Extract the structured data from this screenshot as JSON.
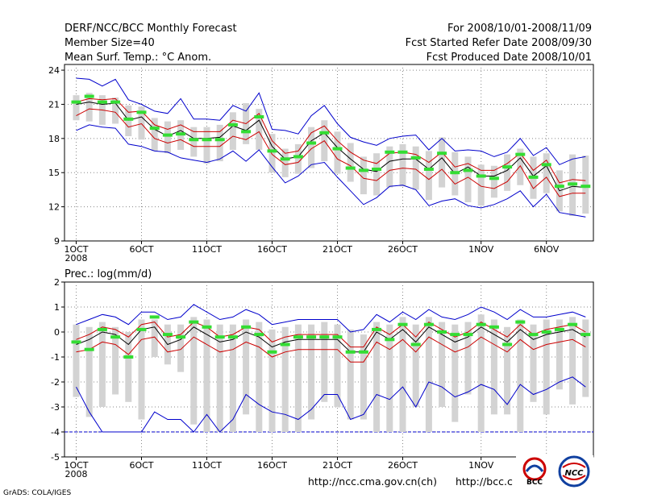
{
  "header": {
    "title_left": "DERF/NCC/BCC Monthly Forecast",
    "member_size": "Member Size=40",
    "variable": "Mean Surf. Temp.: °C Anom.",
    "period": "For 2008/10/01-2008/11/09",
    "started_date": "Fcst Started Refer Date 2008/09/30",
    "produced_date": "Fcst Produced Date 2008/10/01"
  },
  "footer": {
    "credit": "GrADS: COLA/IGES",
    "url1": "http://ncc.cma.gov.cn(ch)",
    "url2": "http://bcc.c",
    "logo1_text": "BCC",
    "logo2_text": "NCC"
  },
  "colors": {
    "box": "#d3d3d3",
    "ensemble_mean": "#000000",
    "band_inner": "#cc0000",
    "band_outer": "#0000cc",
    "marker": "#33dd33",
    "zero_line": "#0000cc",
    "grid": "#888888"
  },
  "chart_data": [
    {
      "type": "box",
      "title": "Mean Surf. Temp.: °C Anom.",
      "x_ticks": [
        "1OCT",
        "6OCT",
        "11OCT",
        "16OCT",
        "21OCT",
        "26OCT",
        "1NOV",
        "6NOV"
      ],
      "x_tick_days": [
        1,
        6,
        11,
        16,
        21,
        26,
        32,
        37
      ],
      "x_sublabel": "2008",
      "ylim": [
        9,
        24.5
      ],
      "y_ticks": [
        9,
        12,
        15,
        18,
        21,
        24
      ],
      "days": [
        1,
        2,
        3,
        4,
        5,
        6,
        7,
        8,
        9,
        10,
        11,
        12,
        13,
        14,
        15,
        16,
        17,
        18,
        19,
        20,
        21,
        22,
        23,
        24,
        25,
        26,
        27,
        28,
        29,
        30,
        31,
        32,
        33,
        34,
        35,
        36,
        37,
        38,
        39,
        40
      ],
      "mean": [
        21.0,
        21.2,
        21.0,
        21.1,
        19.6,
        19.9,
        18.8,
        18.2,
        18.7,
        18.0,
        18.0,
        18.1,
        19.1,
        18.7,
        19.6,
        17.3,
        16.2,
        16.4,
        17.8,
        18.5,
        17.2,
        16.2,
        15.3,
        15.1,
        16.0,
        16.2,
        16.2,
        15.3,
        16.3,
        14.9,
        15.5,
        14.7,
        14.7,
        15.2,
        16.3,
        14.7,
        15.6,
        13.4,
        13.8,
        13.7
      ],
      "inner_upper": [
        21.2,
        21.5,
        21.4,
        21.5,
        20.3,
        20.4,
        19.2,
        18.8,
        19.2,
        18.6,
        18.6,
        18.6,
        19.6,
        19.3,
        20.2,
        17.8,
        16.7,
        16.9,
        18.5,
        19.1,
        17.8,
        16.8,
        16.1,
        15.8,
        16.7,
        16.8,
        16.6,
        15.9,
        16.8,
        15.5,
        15.8,
        15.2,
        15.2,
        15.8,
        16.7,
        15.2,
        16.1,
        14.1,
        14.4,
        14.3
      ],
      "inner_lower": [
        20.0,
        20.6,
        20.5,
        20.3,
        19.0,
        19.3,
        18.0,
        17.6,
        17.9,
        17.3,
        17.3,
        17.3,
        18.2,
        17.9,
        18.6,
        16.6,
        15.7,
        15.9,
        17.1,
        17.8,
        16.2,
        15.6,
        14.5,
        14.3,
        15.2,
        15.4,
        15.3,
        14.4,
        15.3,
        14.0,
        14.6,
        13.8,
        13.6,
        14.2,
        15.6,
        13.6,
        14.6,
        12.9,
        13.2,
        13.2
      ],
      "outer_upper": [
        23.3,
        23.2,
        22.6,
        23.2,
        21.4,
        21.0,
        20.4,
        20.2,
        21.5,
        19.7,
        19.7,
        19.6,
        20.9,
        20.4,
        22.0,
        18.8,
        18.7,
        18.4,
        20.0,
        20.9,
        19.3,
        18.1,
        17.7,
        17.4,
        18.0,
        18.2,
        18.3,
        17.0,
        18.0,
        16.9,
        17.0,
        16.9,
        16.4,
        16.8,
        18.0,
        16.5,
        17.2,
        15.7,
        16.2,
        16.4
      ],
      "outer_lower": [
        18.7,
        19.2,
        19.0,
        18.9,
        17.5,
        17.3,
        16.9,
        16.8,
        16.3,
        16.1,
        15.9,
        16.2,
        16.9,
        16.0,
        17.0,
        15.5,
        14.1,
        14.7,
        15.7,
        15.9,
        14.6,
        13.4,
        12.2,
        12.8,
        13.8,
        13.9,
        13.5,
        12.1,
        12.5,
        12.7,
        12.1,
        11.9,
        12.2,
        12.7,
        13.4,
        12.0,
        13.1,
        11.5,
        11.3,
        11.1
      ],
      "box_top": [
        21.8,
        22.0,
        21.8,
        21.6,
        20.9,
        20.8,
        19.8,
        19.5,
        19.6,
        19.0,
        19.0,
        19.2,
        20.3,
        21.1,
        20.6,
        18.4,
        17.1,
        17.5,
        19.0,
        19.6,
        18.6,
        17.6,
        16.4,
        16.7,
        17.3,
        17.5,
        17.3,
        16.9,
        18.1,
        16.8,
        16.4,
        15.7,
        15.6,
        16.6,
        17.1,
        16.4,
        16.7,
        15.2,
        16.6,
        16.5
      ],
      "box_bottom": [
        19.6,
        19.5,
        19.2,
        19.3,
        18.2,
        17.9,
        16.9,
        16.7,
        17.0,
        16.4,
        15.8,
        16.0,
        17.0,
        17.5,
        17.0,
        15.0,
        14.6,
        14.9,
        15.4,
        16.0,
        14.9,
        14.2,
        13.1,
        13.0,
        13.7,
        13.8,
        13.5,
        12.6,
        13.7,
        13.0,
        12.4,
        12.1,
        12.8,
        13.4,
        13.9,
        12.7,
        13.2,
        11.6,
        11.2,
        11.4
      ],
      "marker": [
        21.2,
        21.7,
        21.2,
        21.2,
        19.7,
        20.3,
        18.9,
        18.3,
        18.4,
        17.9,
        17.9,
        17.9,
        19.2,
        18.6,
        19.9,
        16.9,
        16.2,
        16.4,
        17.6,
        18.5,
        17.1,
        15.4,
        15.2,
        15.3,
        16.8,
        16.8,
        16.3,
        15.3,
        16.7,
        15.0,
        15.2,
        14.7,
        14.5,
        15.5,
        16.6,
        14.6,
        15.7,
        13.8,
        14.0,
        13.8
      ]
    },
    {
      "type": "box",
      "title": "Prec.: log(mm/d)",
      "x_ticks": [
        "1OCT",
        "6OCT",
        "11OCT",
        "16OCT",
        "21OCT",
        "26OCT",
        "1NOV",
        "6NOV"
      ],
      "x_tick_days": [
        1,
        6,
        11,
        16,
        21,
        26,
        32,
        37
      ],
      "x_sublabel": "2008",
      "ylim": [
        -5,
        2
      ],
      "y_ticks": [
        -5,
        -4,
        -3,
        -2,
        -1,
        0,
        1,
        2
      ],
      "baseline": -4,
      "days": [
        1,
        2,
        3,
        4,
        5,
        6,
        7,
        8,
        9,
        10,
        11,
        12,
        13,
        14,
        15,
        16,
        17,
        18,
        19,
        20,
        21,
        22,
        23,
        24,
        25,
        26,
        27,
        28,
        29,
        30,
        31,
        32,
        33,
        34,
        35,
        36,
        37,
        38,
        39,
        40
      ],
      "mean": [
        -0.5,
        -0.3,
        0.0,
        -0.1,
        -0.5,
        0.1,
        0.2,
        -0.5,
        -0.3,
        0.2,
        -0.1,
        -0.4,
        -0.3,
        0.0,
        -0.2,
        -0.6,
        -0.4,
        -0.3,
        -0.3,
        -0.3,
        -0.3,
        -0.8,
        -0.8,
        0.0,
        -0.3,
        0.1,
        -0.4,
        0.2,
        -0.1,
        -0.4,
        -0.2,
        0.2,
        -0.1,
        -0.4,
        0.1,
        -0.3,
        -0.1,
        0.0,
        0.1,
        -0.2
      ],
      "inner_upper": [
        -0.3,
        -0.1,
        0.2,
        0.1,
        -0.2,
        0.3,
        0.4,
        -0.2,
        -0.1,
        0.4,
        0.2,
        -0.2,
        -0.1,
        0.2,
        0.1,
        -0.4,
        -0.2,
        -0.1,
        -0.1,
        -0.1,
        -0.1,
        -0.6,
        -0.6,
        0.2,
        -0.1,
        0.3,
        -0.2,
        0.4,
        0.1,
        -0.2,
        0.0,
        0.4,
        0.1,
        -0.2,
        0.3,
        -0.1,
        0.1,
        0.2,
        0.3,
        0.0
      ],
      "inner_lower": [
        -0.8,
        -0.7,
        -0.4,
        -0.5,
        -0.9,
        -0.3,
        -0.2,
        -0.8,
        -0.7,
        -0.2,
        -0.5,
        -0.8,
        -0.7,
        -0.4,
        -0.6,
        -1.0,
        -0.8,
        -0.7,
        -0.7,
        -0.7,
        -0.7,
        -1.2,
        -1.2,
        -0.4,
        -0.7,
        -0.3,
        -0.8,
        -0.2,
        -0.5,
        -0.8,
        -0.6,
        -0.2,
        -0.5,
        -0.8,
        -0.3,
        -0.7,
        -0.5,
        -0.4,
        -0.3,
        -0.6
      ],
      "outer_upper": [
        0.3,
        0.5,
        0.7,
        0.6,
        0.3,
        0.8,
        0.8,
        0.5,
        0.6,
        1.1,
        0.8,
        0.5,
        0.6,
        0.9,
        0.7,
        0.3,
        0.4,
        0.5,
        0.5,
        0.5,
        0.5,
        0.0,
        0.1,
        0.7,
        0.4,
        0.8,
        0.5,
        0.9,
        0.6,
        0.5,
        0.7,
        1.0,
        0.8,
        0.5,
        0.9,
        0.6,
        0.6,
        0.7,
        0.8,
        0.6
      ],
      "outer_lower": [
        -2.2,
        -3.2,
        -4.0,
        -4.0,
        -4.0,
        -4.0,
        -3.2,
        -3.5,
        -3.5,
        -4.0,
        -3.3,
        -4.0,
        -3.5,
        -2.5,
        -2.9,
        -3.2,
        -3.3,
        -3.5,
        -3.1,
        -2.5,
        -2.5,
        -3.5,
        -3.3,
        -2.5,
        -2.7,
        -2.2,
        -3.0,
        -2.0,
        -2.2,
        -2.6,
        -2.4,
        -2.1,
        -2.3,
        -2.9,
        -2.1,
        -2.5,
        -2.3,
        -2.0,
        -1.8,
        -2.2
      ],
      "box_top": [
        0.3,
        0.2,
        0.4,
        0.2,
        0.0,
        0.5,
        0.5,
        0.3,
        0.3,
        0.6,
        0.5,
        0.3,
        0.3,
        0.5,
        0.4,
        0.1,
        0.2,
        0.3,
        0.3,
        0.4,
        0.3,
        0.1,
        -0.1,
        0.4,
        0.3,
        0.6,
        0.3,
        0.6,
        0.4,
        0.3,
        0.4,
        0.7,
        0.5,
        0.2,
        0.5,
        0.3,
        0.5,
        0.5,
        0.6,
        0.5
      ],
      "box_bottom": [
        -2.6,
        -3.4,
        -3.0,
        -2.5,
        -2.8,
        -3.5,
        -1.0,
        -1.3,
        -1.6,
        -3.7,
        -4.0,
        -4.0,
        -4.0,
        -3.3,
        -4.0,
        -4.0,
        -4.0,
        -4.0,
        -3.5,
        -2.8,
        -3.0,
        -3.5,
        -3.5,
        -4.0,
        -4.0,
        -4.0,
        -3.0,
        -4.0,
        -3.0,
        -3.6,
        -2.5,
        -4.0,
        -3.3,
        -3.3,
        -4.0,
        -2.8,
        -3.3,
        -2.3,
        -2.9,
        -2.6
      ],
      "marker": [
        -0.4,
        -0.7,
        0.1,
        -0.2,
        -1.0,
        0.1,
        0.6,
        -0.1,
        -0.2,
        0.4,
        0.2,
        -0.2,
        -0.2,
        0.2,
        -0.1,
        -0.8,
        -0.5,
        -0.2,
        -0.2,
        -0.2,
        -0.2,
        -0.8,
        -0.8,
        0.1,
        -0.3,
        0.3,
        -0.5,
        0.3,
        0.0,
        -0.1,
        -0.1,
        0.3,
        0.2,
        -0.5,
        0.4,
        -0.1,
        0.0,
        0.1,
        0.3,
        -0.1
      ]
    }
  ]
}
